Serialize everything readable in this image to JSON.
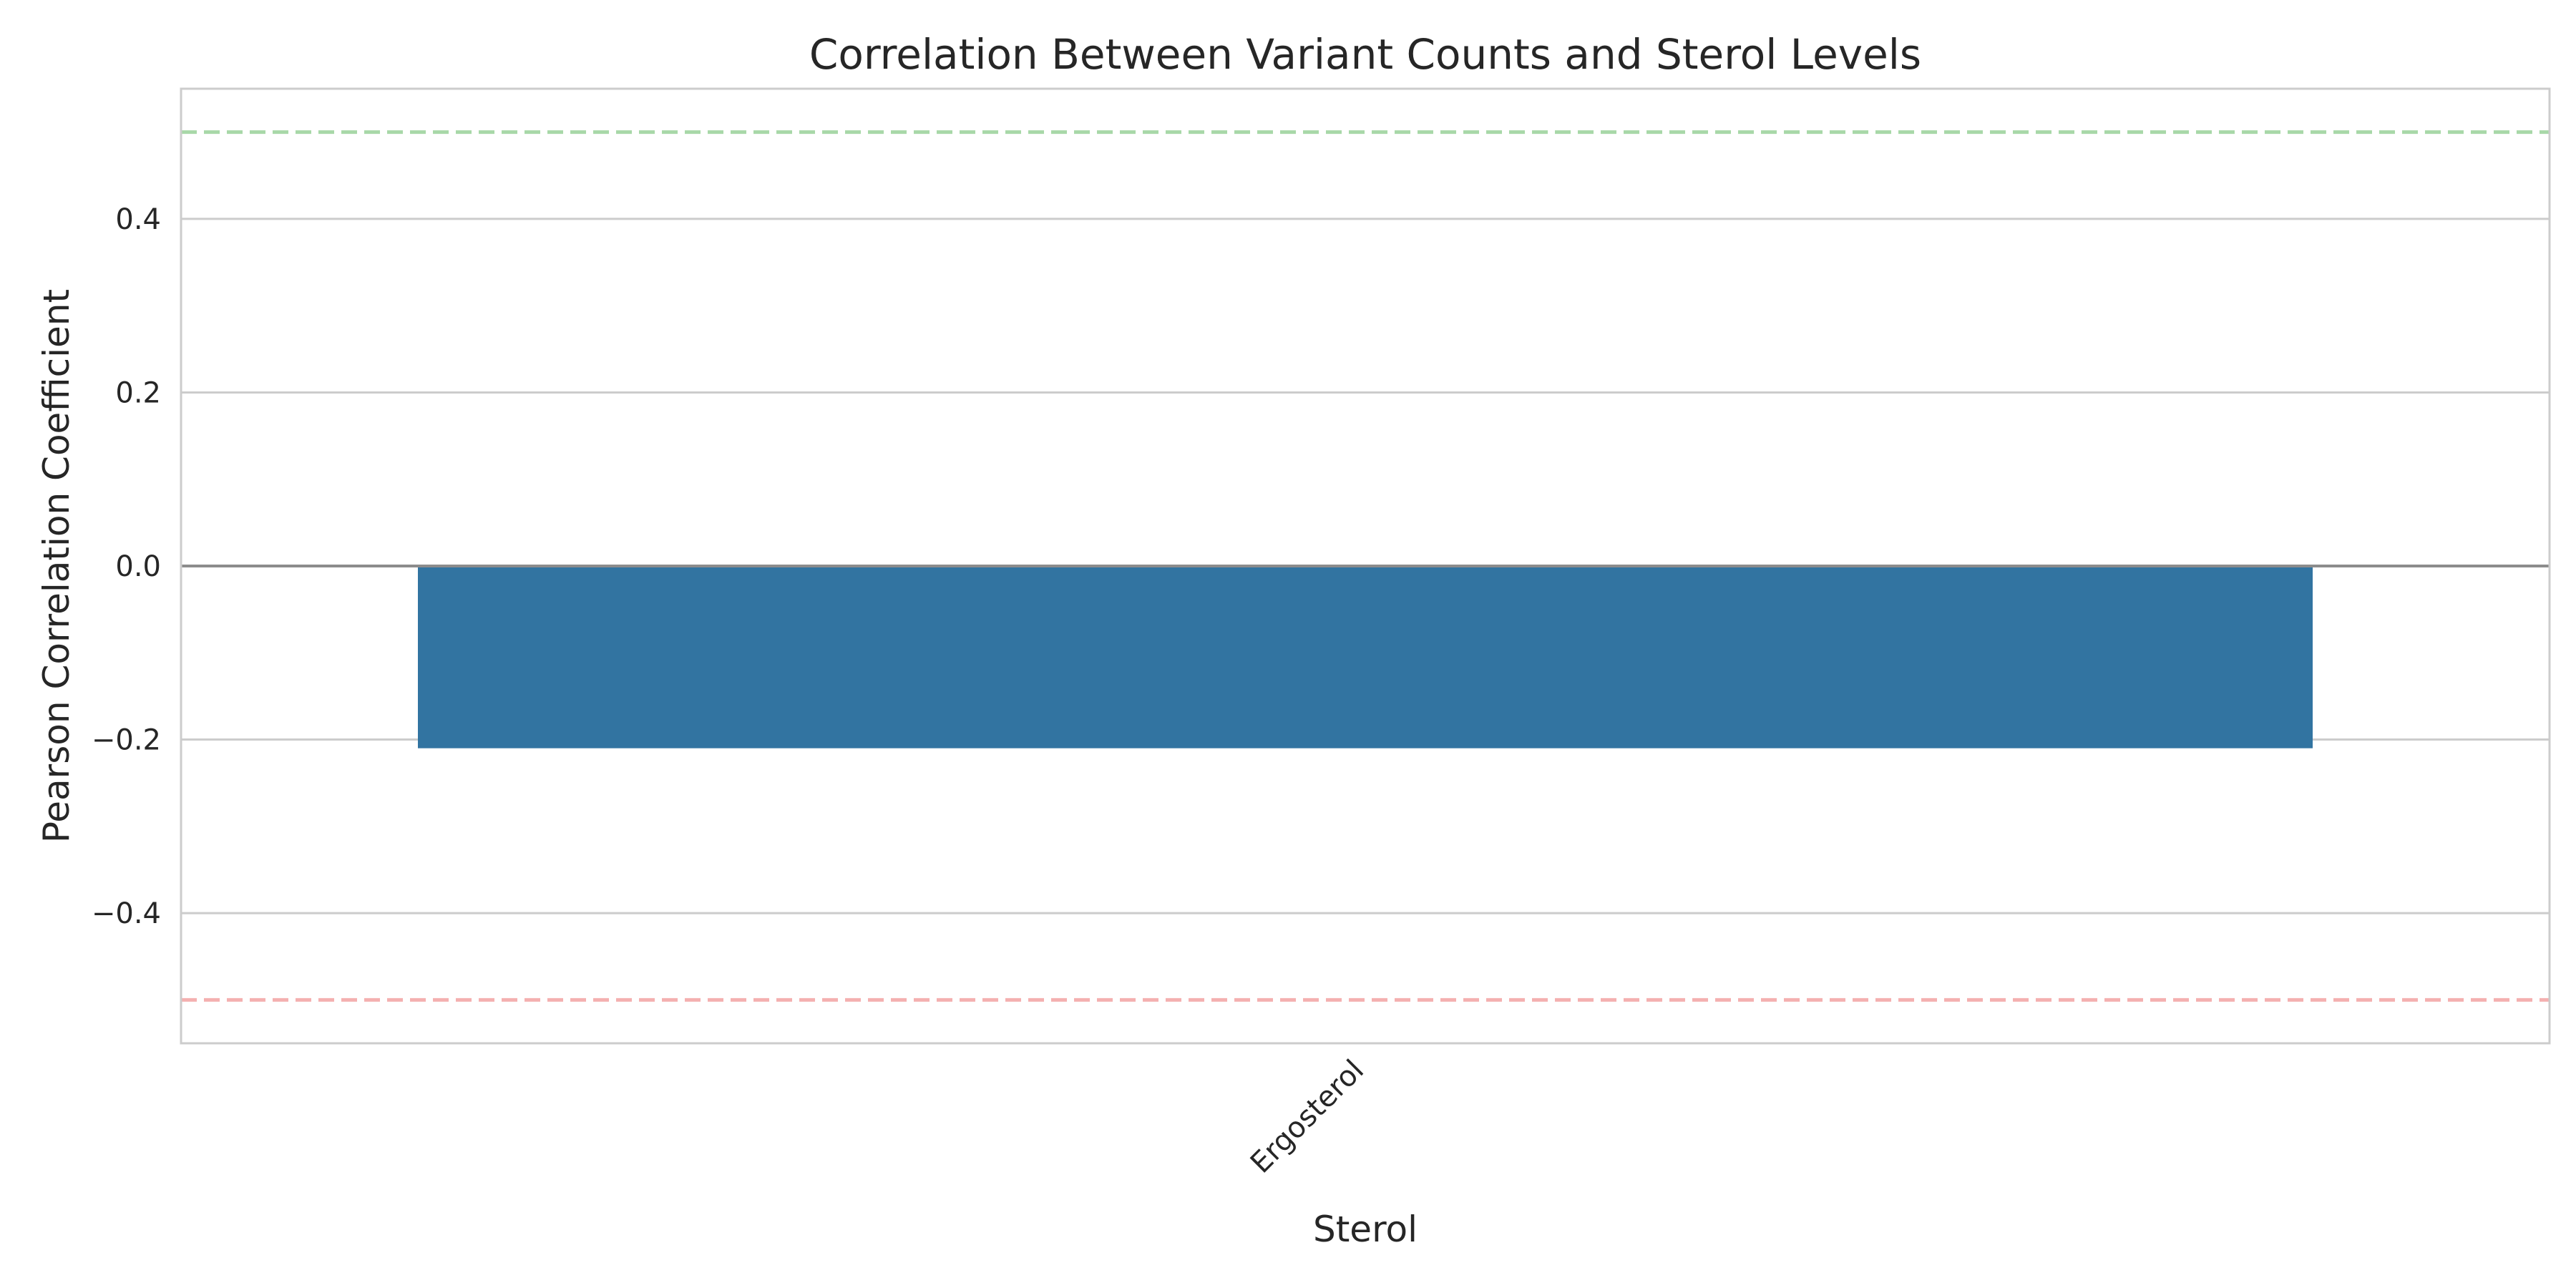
{
  "chart_data": {
    "type": "bar",
    "title": "Correlation Between Variant Counts and Sterol Levels",
    "xlabel": "Sterol",
    "ylabel": "Pearson Correlation Coefficient",
    "categories": [
      "Ergosterol"
    ],
    "values": [
      -0.21
    ],
    "ylim": [
      -0.55,
      0.55
    ],
    "yticks": [
      -0.4,
      -0.2,
      0.0,
      0.2,
      0.4
    ],
    "ytick_labels": [
      "−0.4",
      "−0.2",
      "0.0",
      "0.2",
      "0.4"
    ],
    "grid": true,
    "reference_lines": [
      {
        "y": 0.5,
        "color": "#a8d8a8",
        "style": "dashed"
      },
      {
        "y": -0.5,
        "color": "#f4b0b0",
        "style": "dashed"
      },
      {
        "y": 0.0,
        "color": "#8c8c8c",
        "style": "solid"
      }
    ],
    "bar_color": "#3274a1",
    "grid_color": "#cccccc",
    "axes_color": "#cccccc"
  }
}
